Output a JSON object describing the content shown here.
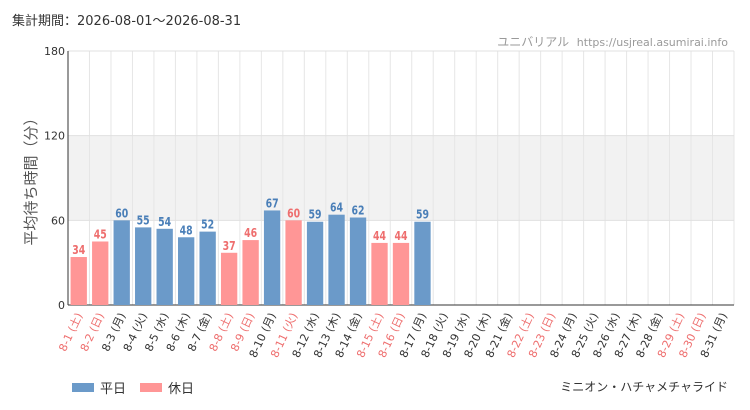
{
  "header": {
    "period_label": "集計期間：2026-08-01～2026-08-31",
    "site_name": "ユニバリアル",
    "site_url": "https://usjreal.asumirai.info"
  },
  "legend": {
    "weekday_label": "平日",
    "holiday_label": "休日"
  },
  "footer": {
    "ride_name": "ミニオン・ハチャメチャライド"
  },
  "colors": {
    "weekday": "#6b9ac9",
    "holiday": "#ff9696",
    "weekday_text": "#4a7fb8",
    "holiday_text": "#ee6e6e",
    "band": "#f2f2f2"
  },
  "chart_data": {
    "type": "bar",
    "title": "",
    "ylabel": "平均待ち時間（分）",
    "xlabel": "",
    "ylim": [
      0,
      180
    ],
    "yticks": [
      0,
      60,
      120,
      180
    ],
    "grid": true,
    "legend_position": "bottom-left",
    "categories": [
      "8-1 (土)",
      "8-2 (日)",
      "8-3 (月)",
      "8-4 (火)",
      "8-5 (水)",
      "8-6 (木)",
      "8-7 (金)",
      "8-8 (土)",
      "8-9 (日)",
      "8-10 (月)",
      "8-11 (火)",
      "8-12 (水)",
      "8-13 (木)",
      "8-14 (金)",
      "8-15 (土)",
      "8-16 (日)",
      "8-17 (月)",
      "8-18 (火)",
      "8-19 (水)",
      "8-20 (木)",
      "8-21 (金)",
      "8-22 (土)",
      "8-23 (日)",
      "8-24 (月)",
      "8-25 (火)",
      "8-26 (水)",
      "8-27 (木)",
      "8-28 (金)",
      "8-29 (土)",
      "8-30 (日)",
      "8-31 (月)"
    ],
    "day_types": [
      "holiday",
      "holiday",
      "weekday",
      "weekday",
      "weekday",
      "weekday",
      "weekday",
      "holiday",
      "holiday",
      "weekday",
      "holiday",
      "weekday",
      "weekday",
      "weekday",
      "holiday",
      "holiday",
      "weekday",
      "weekday",
      "weekday",
      "weekday",
      "weekday",
      "holiday",
      "holiday",
      "weekday",
      "weekday",
      "weekday",
      "weekday",
      "weekday",
      "holiday",
      "holiday",
      "weekday"
    ],
    "values": [
      34,
      45,
      60,
      55,
      54,
      48,
      52,
      37,
      46,
      67,
      60,
      59,
      64,
      62,
      44,
      44,
      59,
      null,
      null,
      null,
      null,
      null,
      null,
      null,
      null,
      null,
      null,
      null,
      null,
      null,
      null
    ]
  }
}
